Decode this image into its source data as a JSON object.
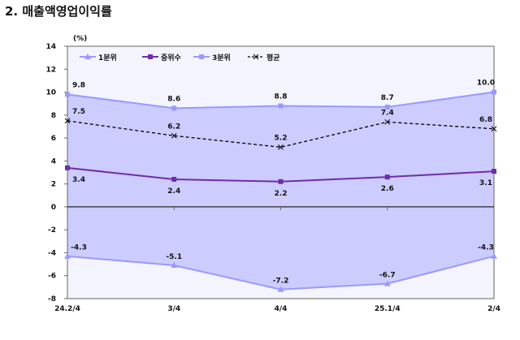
{
  "title": "2. 매출액영업이익률",
  "chart_data": {
    "type": "line",
    "title": "",
    "ylabel": "(%)",
    "xlabel": "",
    "categories": [
      "24.2/4",
      "3/4",
      "4/4",
      "25.1/4",
      "2/4"
    ],
    "ylim": [
      -8,
      14
    ],
    "yticks": [
      -8,
      -6,
      -4,
      -2,
      0,
      2,
      4,
      6,
      8,
      10,
      12,
      14
    ],
    "grid": false,
    "legend": "top-left",
    "band_fill": "between 1분위 and 3분위",
    "series": [
      {
        "name": "1분위",
        "values": [
          -4.3,
          -5.1,
          -7.2,
          -6.7,
          -4.3
        ],
        "color": "#9999ff",
        "marker": "triangle"
      },
      {
        "name": "중위수",
        "values": [
          3.4,
          2.4,
          2.2,
          2.6,
          3.1
        ],
        "color": "#6f2da8",
        "marker": "square"
      },
      {
        "name": "3분위",
        "values": [
          9.8,
          8.6,
          8.8,
          8.7,
          10.0
        ],
        "color": "#9999ff",
        "marker": "square"
      },
      {
        "name": "평균",
        "values": [
          7.5,
          6.2,
          5.2,
          7.4,
          6.8
        ],
        "color": "#000000",
        "marker": "x",
        "dashed": true
      }
    ],
    "colors": {
      "band": "#ccccff",
      "plot_bg": "#f4f4fe"
    }
  }
}
